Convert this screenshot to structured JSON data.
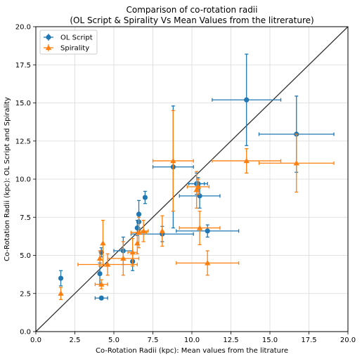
{
  "chart_data": {
    "type": "scatter",
    "title": [
      "Comparison of co-rotation radii",
      "(OL Script & Spirality Vs Mean Values from the litrerature)"
    ],
    "xlabel": "Co-Rotation Radii (kpc): Mean values from the litrature",
    "ylabel": "Co-Rotation Radii (kpc): OL Script and Spirality",
    "xlim": [
      0,
      20
    ],
    "ylim": [
      0,
      20
    ],
    "xticks": [
      "0.0",
      "2.5",
      "5.0",
      "7.5",
      "10.0",
      "12.5",
      "15.0",
      "17.5",
      "20.0"
    ],
    "yticks": [
      "0.0",
      "2.5",
      "5.0",
      "7.5",
      "10.0",
      "12.5",
      "15.0",
      "17.5",
      "20.0"
    ],
    "grid": true,
    "legend_position": "top-left",
    "identity_line": {
      "from": [
        0,
        0
      ],
      "to": [
        20,
        20
      ],
      "color": "#333333"
    },
    "series": [
      {
        "name": "OL Script",
        "marker": "circle",
        "color": "#1f77b4",
        "points": [
          {
            "x": 1.6,
            "y": 3.5,
            "xerr": 0,
            "yerr": 0.5
          },
          {
            "x": 4.2,
            "y": 2.2,
            "xerr": 0.4,
            "yerr": 0.1
          },
          {
            "x": 4.1,
            "y": 3.8,
            "xerr": 0,
            "yerr": 0.7
          },
          {
            "x": 4.2,
            "y": 5.2,
            "xerr": 0,
            "yerr": 0.3
          },
          {
            "x": 5.6,
            "y": 5.3,
            "xerr": 0.6,
            "yerr": 0.9
          },
          {
            "x": 6.2,
            "y": 4.6,
            "xerr": 0,
            "yerr": 0.6
          },
          {
            "x": 6.5,
            "y": 6.8,
            "xerr": 0,
            "yerr": 0.5
          },
          {
            "x": 6.6,
            "y": 7.2,
            "xerr": 0,
            "yerr": 0.5
          },
          {
            "x": 6.6,
            "y": 7.7,
            "xerr": 0,
            "yerr": 0.9
          },
          {
            "x": 7.0,
            "y": 8.8,
            "xerr": 0,
            "yerr": 0.4
          },
          {
            "x": 8.1,
            "y": 6.4,
            "xerr": 2.0,
            "yerr": 0.5
          },
          {
            "x": 8.8,
            "y": 10.8,
            "xerr": 1.3,
            "yerr": 4.0
          },
          {
            "x": 10.3,
            "y": 9.7,
            "xerr": 0.5,
            "yerr": 0.7
          },
          {
            "x": 10.4,
            "y": 9.7,
            "xerr": 0.6,
            "yerr": 0.4
          },
          {
            "x": 10.5,
            "y": 8.9,
            "xerr": 1.3,
            "yerr": 0.8
          },
          {
            "x": 11.0,
            "y": 6.6,
            "xerr": 2.0,
            "yerr": 0.4
          },
          {
            "x": 13.5,
            "y": 15.2,
            "xerr": 2.2,
            "yerr": 3.0
          },
          {
            "x": 16.7,
            "y": 12.95,
            "xerr": 2.4,
            "yerr": 2.5
          }
        ]
      },
      {
        "name": "Spirality",
        "marker": "triangle",
        "color": "#ff7f0e",
        "points": [
          {
            "x": 1.6,
            "y": 2.5,
            "xerr": 0,
            "yerr": 0.4
          },
          {
            "x": 4.2,
            "y": 3.1,
            "xerr": 0.4,
            "yerr": 0.3
          },
          {
            "x": 4.1,
            "y": 4.8,
            "xerr": 0,
            "yerr": 0.5
          },
          {
            "x": 4.3,
            "y": 5.8,
            "xerr": 0,
            "yerr": 1.5
          },
          {
            "x": 4.6,
            "y": 4.4,
            "xerr": 1.9,
            "yerr": 0.7
          },
          {
            "x": 5.6,
            "y": 4.8,
            "xerr": 1.0,
            "yerr": 1.1
          },
          {
            "x": 6.2,
            "y": 5.2,
            "xerr": 0.3,
            "yerr": 0.9
          },
          {
            "x": 6.5,
            "y": 5.8,
            "xerr": 0,
            "yerr": 0.7
          },
          {
            "x": 6.6,
            "y": 6.5,
            "xerr": 0.5,
            "yerr": 1.0
          },
          {
            "x": 6.9,
            "y": 6.6,
            "xerr": 0.3,
            "yerr": 0.7
          },
          {
            "x": 8.1,
            "y": 6.6,
            "xerr": 0,
            "yerr": 1.0
          },
          {
            "x": 8.8,
            "y": 11.2,
            "xerr": 1.3,
            "yerr": 3.3
          },
          {
            "x": 10.3,
            "y": 9.3,
            "xerr": 0,
            "yerr": 1.2
          },
          {
            "x": 10.4,
            "y": 9.5,
            "xerr": 0.7,
            "yerr": 0.5
          },
          {
            "x": 10.5,
            "y": 6.8,
            "xerr": 1.3,
            "yerr": 1.1
          },
          {
            "x": 11.0,
            "y": 4.5,
            "xerr": 2.0,
            "yerr": 0.8
          },
          {
            "x": 13.5,
            "y": 11.2,
            "xerr": 2.2,
            "yerr": 0.8
          },
          {
            "x": 16.7,
            "y": 11.05,
            "xerr": 2.4,
            "yerr": 1.9
          }
        ]
      }
    ]
  }
}
